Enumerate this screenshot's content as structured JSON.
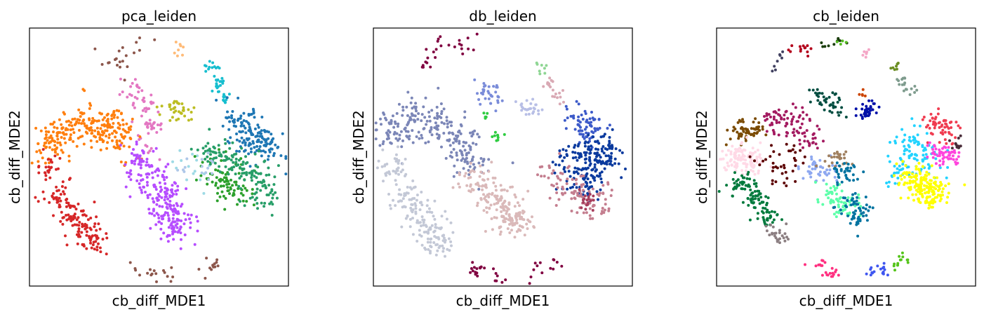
{
  "chart_data": [
    {
      "type": "scatter",
      "title": "pca_leiden",
      "xlabel": "cb_diff_MDE1",
      "ylabel": "cb_diff_MDE2",
      "xlim": [
        0,
        100
      ],
      "ylim": [
        0,
        100
      ],
      "grid": false,
      "legend": "none",
      "series": [
        {
          "color": "#8c564b",
          "centers": [
            [
              32,
              90
            ],
            [
              43,
              94
            ],
            [
              35,
              86
            ]
          ],
          "spread": 2.2,
          "count": 20
        },
        {
          "color": "#8c564b",
          "centers": [
            [
              40,
              6
            ],
            [
              48,
              5
            ],
            [
              55,
              5
            ],
            [
              65,
              6
            ],
            [
              72,
              9
            ]
          ],
          "spread": 1.6,
          "count": 30
        },
        {
          "color": "#17becf",
          "centers": [
            [
              70,
              85
            ],
            [
              73,
              79
            ],
            [
              75,
              73
            ]
          ],
          "spread": 1.5,
          "count": 40
        },
        {
          "color": "#ffbb78",
          "centers": [
            [
              58,
              91
            ]
          ],
          "spread": 1.5,
          "count": 8
        },
        {
          "color": "#e377c2",
          "centers": [
            [
              40,
              75
            ],
            [
              45,
              70
            ],
            [
              46,
              62
            ],
            [
              47,
              53
            ]
          ],
          "spread": 2.2,
          "count": 70
        },
        {
          "color": "#bcbd22",
          "centers": [
            [
              55,
              68
            ],
            [
              60,
              68
            ]
          ],
          "spread": 2,
          "count": 35
        },
        {
          "color": "#9edae5",
          "centers": [
            [
              58,
              48
            ],
            [
              64,
              43
            ]
          ],
          "spread": 3,
          "count": 15
        },
        {
          "color": "#ff7f0e",
          "centers": [
            [
              8,
              55
            ],
            [
              15,
              60
            ],
            [
              23,
              63
            ],
            [
              30,
              62
            ],
            [
              35,
              58
            ]
          ],
          "spread": 4,
          "count": 260
        },
        {
          "color": "#d62728",
          "centers": [
            [
              8,
              45
            ],
            [
              11,
              35
            ],
            [
              16,
              28
            ],
            [
              21,
              22
            ],
            [
              24,
              17
            ]
          ],
          "spread": 3,
          "count": 170
        },
        {
          "color": "#b64dff",
          "centers": [
            [
              42,
              47
            ],
            [
              49,
              40
            ],
            [
              52,
              32
            ],
            [
              55,
              27
            ],
            [
              57,
              23
            ]
          ],
          "spread": 3.8,
          "count": 240
        },
        {
          "color": "#1f77b4",
          "centers": [
            [
              80,
              65
            ],
            [
              85,
              60
            ],
            [
              88,
              55
            ],
            [
              93,
              55
            ]
          ],
          "spread": 3.5,
          "count": 160
        },
        {
          "color": "#2ca02c",
          "centers": [
            [
              70,
              45
            ],
            [
              76,
              40
            ],
            [
              81,
              38
            ]
          ],
          "spread": 3.5,
          "count": 90
        },
        {
          "color": "#279e68",
          "centers": [
            [
              72,
              52
            ],
            [
              80,
              47
            ],
            [
              86,
              44
            ],
            [
              90,
              36
            ]
          ],
          "spread": 4,
          "count": 150
        },
        {
          "color": "#aec7e8",
          "centers": [
            [
              60,
              45
            ],
            [
              67,
              46
            ]
          ],
          "spread": 3,
          "count": 15
        }
      ]
    },
    {
      "type": "scatter",
      "title": "db_leiden",
      "xlabel": "cb_diff_MDE1",
      "ylabel": "cb_diff_MDE2",
      "xlim": [
        0,
        100
      ],
      "ylim": [
        0,
        100
      ],
      "grid": false,
      "legend": "none",
      "series": [
        {
          "color": "#800040",
          "centers": [
            [
              25,
              94
            ],
            [
              33,
              92
            ],
            [
              20,
              86
            ],
            [
              38,
              95
            ]
          ],
          "spread": 1.8,
          "count": 26
        },
        {
          "color": "#800040",
          "centers": [
            [
              40,
              6
            ],
            [
              48,
              4
            ],
            [
              62,
              6
            ],
            [
              70,
              8
            ]
          ],
          "spread": 1.8,
          "count": 34
        },
        {
          "color": "#8fd694",
          "centers": [
            [
              65,
              84
            ]
          ],
          "spread": 1.2,
          "count": 8
        },
        {
          "color": "#d9a9b4",
          "centers": [
            [
              68,
              78
            ],
            [
              72,
              74
            ]
          ],
          "spread": 1.5,
          "count": 20
        },
        {
          "color": "#7a8cd9",
          "centers": [
            [
              42,
              76
            ],
            [
              46,
              72
            ]
          ],
          "spread": 2,
          "count": 35
        },
        {
          "color": "#b8bfe6",
          "centers": [
            [
              58,
              70
            ],
            [
              62,
              68
            ]
          ],
          "spread": 2,
          "count": 25
        },
        {
          "color": "#2ecc40",
          "centers": [
            [
              43,
              65
            ],
            [
              48,
              58
            ]
          ],
          "spread": 1.2,
          "count": 14
        },
        {
          "color": "#7b86b7",
          "centers": [
            [
              8,
              60
            ],
            [
              16,
              65
            ],
            [
              25,
              62
            ],
            [
              33,
              57
            ],
            [
              36,
              50
            ]
          ],
          "spread": 4.5,
          "count": 240
        },
        {
          "color": "#c3c8d6",
          "centers": [
            [
              8,
              45
            ],
            [
              12,
              36
            ],
            [
              17,
              28
            ],
            [
              22,
              22
            ],
            [
              25,
              18
            ]
          ],
          "spread": 3.5,
          "count": 180
        },
        {
          "color": "#dab9b9",
          "centers": [
            [
              40,
              40
            ],
            [
              47,
              33
            ],
            [
              52,
              27
            ],
            [
              55,
              25
            ]
          ],
          "spread": 3.8,
          "count": 200
        },
        {
          "color": "#3c5ac9",
          "centers": [
            [
              80,
              65
            ],
            [
              84,
              60
            ]
          ],
          "spread": 3,
          "count": 70
        },
        {
          "color": "#0a3a9e",
          "centers": [
            [
              78,
              48
            ],
            [
              86,
              52
            ],
            [
              90,
              50
            ],
            [
              81,
              40
            ]
          ],
          "spread": 3.8,
          "count": 200
        },
        {
          "color": "#c47e8f",
          "centers": [
            [
              70,
              43
            ],
            [
              78,
              38
            ],
            [
              82,
              32
            ],
            [
              88,
              32
            ]
          ],
          "spread": 3.5,
          "count": 100
        },
        {
          "color": "#a63d5c",
          "centers": [
            [
              82,
              33
            ]
          ],
          "spread": 2,
          "count": 18
        }
      ]
    },
    {
      "type": "scatter",
      "title": "cb_leiden",
      "xlabel": "cb_diff_MDE1",
      "ylabel": "cb_diff_MDE2",
      "xlim": [
        0,
        100
      ],
      "ylim": [
        0,
        100
      ],
      "grid": false,
      "legend": "none",
      "series": [
        {
          "color": "#b3001b",
          "centers": [
            [
              28,
              90
            ],
            [
              34,
              92
            ]
          ],
          "spread": 1.8,
          "count": 14
        },
        {
          "color": "#1a3d0b",
          "centers": [
            [
              41,
              94
            ],
            [
              47,
              95
            ]
          ],
          "spread": 1.2,
          "count": 10
        },
        {
          "color": "#55bb22",
          "centers": [
            [
              49,
              95
            ]
          ],
          "spread": 0.8,
          "count": 4
        },
        {
          "color": "#404060",
          "centers": [
            [
              22,
              84
            ],
            [
              25,
              88
            ]
          ],
          "spread": 1.2,
          "count": 8
        },
        {
          "color": "#f4a6c6",
          "centers": [
            [
              57,
              91
            ]
          ],
          "spread": 1,
          "count": 6
        },
        {
          "color": "#6b8e23",
          "centers": [
            [
              69,
              85
            ]
          ],
          "spread": 1,
          "count": 7
        },
        {
          "color": "#7f9c8e",
          "centers": [
            [
              72,
              79
            ],
            [
              75,
              75
            ]
          ],
          "spread": 1.5,
          "count": 18
        },
        {
          "color": "#004d40",
          "centers": [
            [
              41,
              73
            ],
            [
              46,
              69
            ]
          ],
          "spread": 2.2,
          "count": 40
        },
        {
          "color": "#0010a8",
          "centers": [
            [
              57,
              67
            ],
            [
              60,
              69
            ]
          ],
          "spread": 1.5,
          "count": 35
        },
        {
          "color": "#cc4400",
          "centers": [
            [
              56,
              74
            ]
          ],
          "spread": 0.8,
          "count": 5
        },
        {
          "color": "#a31a60",
          "centers": [
            [
              22,
              64
            ],
            [
              30,
              63
            ],
            [
              36,
              58
            ]
          ],
          "spread": 3,
          "count": 90
        },
        {
          "color": "#7a4a00",
          "centers": [
            [
              10,
              60
            ],
            [
              15,
              61
            ]
          ],
          "spread": 2.5,
          "count": 60
        },
        {
          "color": "#ffd9e6",
          "centers": [
            [
              7,
              50
            ],
            [
              13,
              49
            ]
          ],
          "spread": 3,
          "count": 110
        },
        {
          "color": "#007a3d",
          "centers": [
            [
              10,
              40
            ],
            [
              15,
              35
            ],
            [
              20,
              27
            ]
          ],
          "spread": 2.5,
          "count": 110
        },
        {
          "color": "#8c7f82",
          "centers": [
            [
              22,
              22
            ],
            [
              25,
              19
            ]
          ],
          "spread": 1.8,
          "count": 25
        },
        {
          "color": "#5c0000",
          "centers": [
            [
              20,
              50
            ],
            [
              25,
              42
            ],
            [
              30,
              50
            ]
          ],
          "spread": 2.8,
          "count": 40
        },
        {
          "color": "#8ea8f0",
          "centers": [
            [
              36,
              46
            ],
            [
              43,
              44
            ]
          ],
          "spread": 2.5,
          "count": 45
        },
        {
          "color": "#a08060",
          "centers": [
            [
              47,
              50
            ]
          ],
          "spread": 2.2,
          "count": 25
        },
        {
          "color": "#5dffaa",
          "centers": [
            [
              44,
              35
            ],
            [
              49,
              31
            ]
          ],
          "spread": 2.8,
          "count": 70
        },
        {
          "color": "#0073a0",
          "centers": [
            [
              53,
              32
            ],
            [
              55,
              27
            ],
            [
              50,
              44
            ]
          ],
          "spread": 2.5,
          "count": 95
        },
        {
          "color": "#f03c50",
          "centers": [
            [
              84,
              62
            ],
            [
              88,
              60
            ]
          ],
          "spread": 2.5,
          "count": 55
        },
        {
          "color": "#22d3ff",
          "centers": [
            [
              75,
              55
            ],
            [
              80,
              50
            ],
            [
              72,
              45
            ]
          ],
          "spread": 3.5,
          "count": 110
        },
        {
          "color": "#ff44dd",
          "centers": [
            [
              90,
              50
            ],
            [
              86,
              51
            ]
          ],
          "spread": 2.5,
          "count": 55
        },
        {
          "color": "#ffff00",
          "centers": [
            [
              79,
              38
            ],
            [
              84,
              36
            ],
            [
              76,
              42
            ]
          ],
          "spread": 3,
          "count": 180
        },
        {
          "color": "#4a2d3a",
          "centers": [
            [
              93,
              55
            ]
          ],
          "spread": 1.8,
          "count": 12
        },
        {
          "color": "#ff3080",
          "centers": [
            [
              40,
              7
            ],
            [
              45,
              5
            ]
          ],
          "spread": 1.5,
          "count": 22
        },
        {
          "color": "#3f56f0",
          "centers": [
            [
              60,
              5
            ],
            [
              65,
              6
            ]
          ],
          "spread": 1.4,
          "count": 18
        },
        {
          "color": "#55c41a",
          "centers": [
            [
              69,
              8
            ],
            [
              72,
              10
            ]
          ],
          "spread": 1.2,
          "count": 14
        }
      ]
    }
  ]
}
